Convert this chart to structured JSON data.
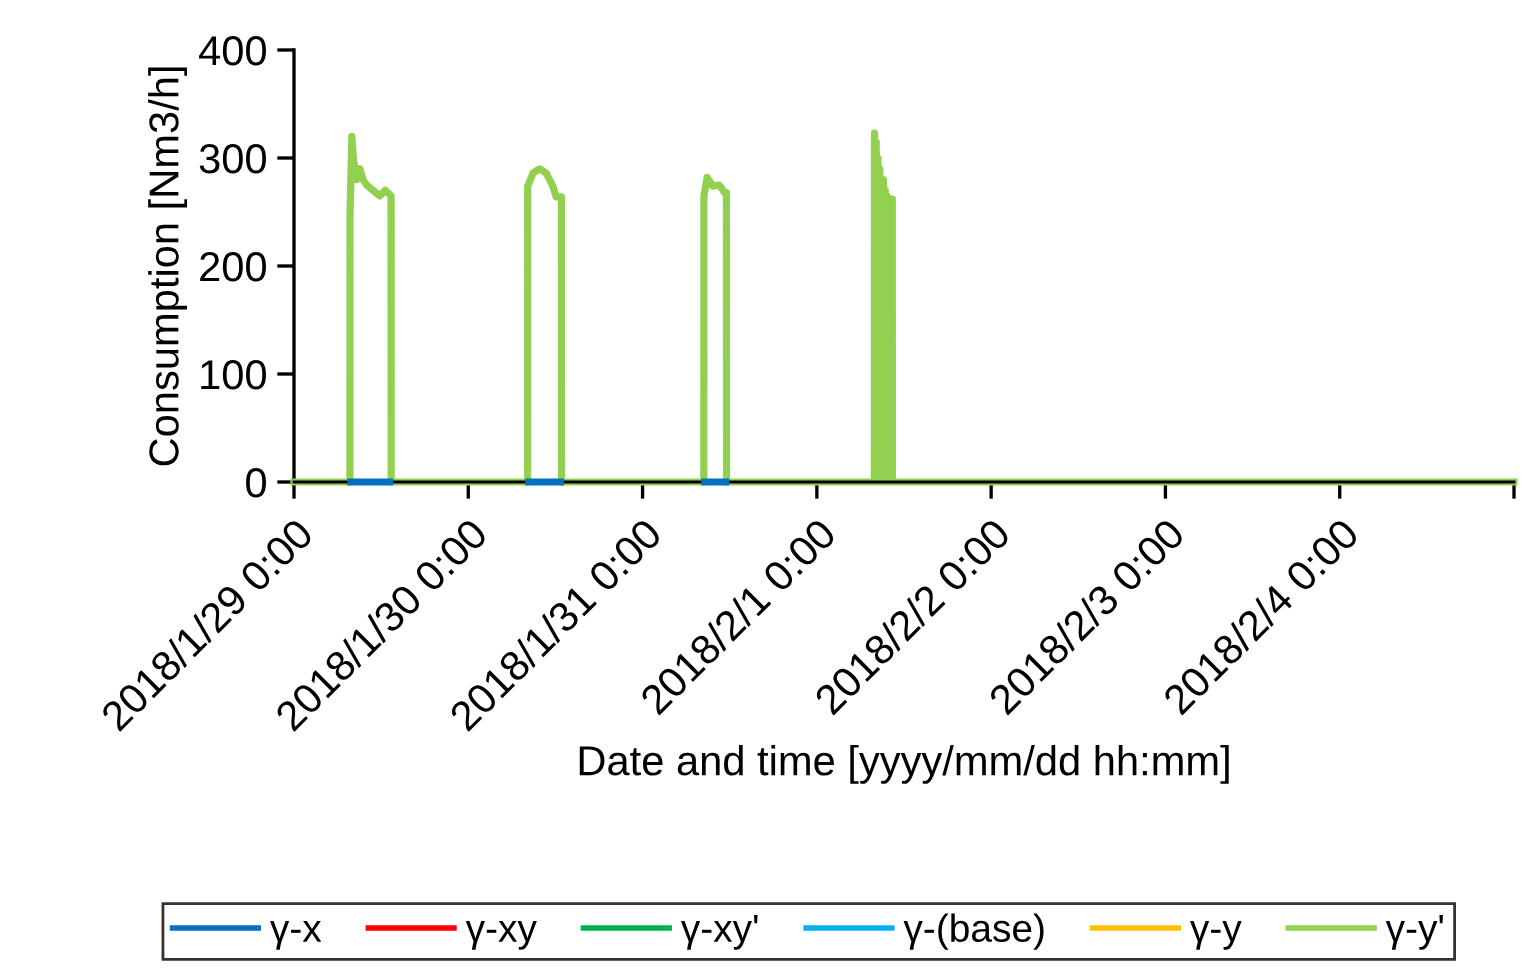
{
  "chart_data": {
    "type": "line",
    "xlabel": "Date and time [yyyy/mm/dd hh:mm]",
    "ylabel": "Consumption [Nm3/h]",
    "xlim": [
      "2018-01-29T00:00",
      "2018-02-05T00:00"
    ],
    "xticks": [
      {
        "value": "2018-01-29T00:00",
        "label": "2018/1/29 0:00"
      },
      {
        "value": "2018-01-30T00:00",
        "label": "2018/1/30 0:00"
      },
      {
        "value": "2018-01-31T00:00",
        "label": "2018/1/31 0:00"
      },
      {
        "value": "2018-02-01T00:00",
        "label": "2018/2/1 0:00"
      },
      {
        "value": "2018-02-02T00:00",
        "label": "2018/2/2 0:00"
      },
      {
        "value": "2018-02-03T00:00",
        "label": "2018/2/3 0:00"
      },
      {
        "value": "2018-02-04T00:00",
        "label": "2018/2/4 0:00"
      },
      {
        "value": "2018-02-05T00:00",
        "label": null
      }
    ],
    "ylim": [
      0,
      400
    ],
    "yticks": [
      0,
      100,
      200,
      300,
      400
    ],
    "grid": false,
    "legend": "bottom",
    "marker": "none",
    "line_style": "solid",
    "series": [
      {
        "name": "γ-x",
        "color": "#0070c0",
        "x": [
          "2018-01-29T07:50",
          "2018-01-29T13:10",
          "2018-01-29T13:11",
          "2018-01-30T08:20",
          "2018-01-30T12:40",
          "2018-01-30T12:41",
          "2018-01-31T08:35",
          "2018-01-31T11:25"
        ],
        "values": [
          0,
          0,
          null,
          0,
          0,
          null,
          0,
          0
        ]
      },
      {
        "name": "γ-xy",
        "color": "#ff0000"
      },
      {
        "name": "γ-xy'",
        "color": "#00b050"
      },
      {
        "name": "γ-(base)",
        "color": "#00b0f0"
      },
      {
        "name": "γ-y",
        "color": "#ffc000"
      },
      {
        "name": "γ-y'",
        "color": "#92d050",
        "x": [
          "2018-01-29T00:00",
          "2018-01-29T07:42",
          "2018-01-29T07:43",
          "2018-01-29T07:58",
          "2018-01-29T08:10",
          "2018-01-29T08:37",
          "2018-01-29T09:04",
          "2018-01-29T09:30",
          "2018-01-29T10:00",
          "2018-01-29T10:54",
          "2018-01-29T11:48",
          "2018-01-29T12:34",
          "2018-01-29T13:22",
          "2018-01-29T13:23",
          "2018-01-30T08:10",
          "2018-01-30T08:11",
          "2018-01-30T08:55",
          "2018-01-30T09:49",
          "2018-01-30T10:44",
          "2018-01-30T11:39",
          "2018-01-30T12:06",
          "2018-01-30T12:49",
          "2018-01-30T12:50",
          "2018-01-31T08:26",
          "2018-01-31T08:27",
          "2018-01-31T08:54",
          "2018-01-31T09:39",
          "2018-01-31T10:34",
          "2018-01-31T11:18",
          "2018-01-31T11:33",
          "2018-01-31T11:34",
          "2018-02-01T07:55",
          "2018-02-01T07:56",
          "2018-02-01T08:05",
          "2018-02-01T08:10",
          "2018-02-01T08:20",
          "2018-02-01T08:25",
          "2018-02-01T08:35",
          "2018-02-01T08:40",
          "2018-02-01T08:50",
          "2018-02-01T08:55",
          "2018-02-01T09:05",
          "2018-02-01T09:10",
          "2018-02-01T09:20",
          "2018-02-01T09:25",
          "2018-02-01T09:35",
          "2018-02-01T09:40",
          "2018-02-01T09:50",
          "2018-02-01T09:55",
          "2018-02-01T10:05",
          "2018-02-01T10:10",
          "2018-02-01T10:23",
          "2018-02-01T10:24",
          "2018-02-05T00:00"
        ],
        "values": [
          0,
          0,
          246,
          320,
          300,
          280,
          290,
          280,
          275,
          270,
          265,
          270,
          265,
          0,
          0,
          274,
          286,
          290,
          286,
          274,
          264,
          264,
          0,
          0,
          265,
          282,
          274,
          275,
          268,
          268,
          0,
          0,
          323,
          0,
          315,
          0,
          300,
          0,
          290,
          0,
          268,
          0,
          280,
          0,
          270,
          0,
          265,
          0,
          262,
          0,
          262,
          262,
          0,
          0
        ]
      }
    ]
  }
}
